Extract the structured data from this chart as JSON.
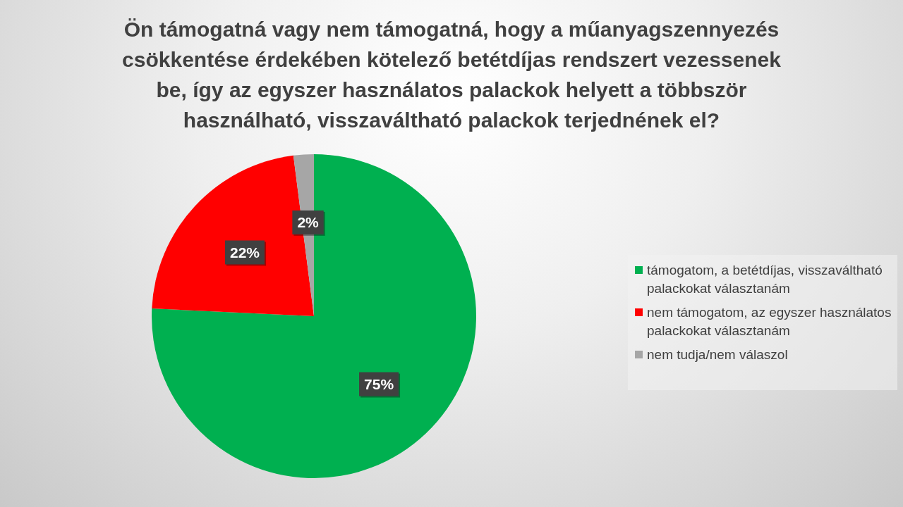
{
  "chart_data": {
    "type": "pie",
    "title": "Ön támogatná vagy nem támogatná, hogy a műanyagszennyezés csökkentése érdekében kötelező betétdíjas rendszert vezessenek be, így az egyszer használatos palackok helyett a többször használható, visszaváltható palackok terjednének el?",
    "categories": [
      "támogatom, a betétdíjas, visszaváltható palackokat választanám",
      "nem támogatom, az egyszer használatos palackokat választanám",
      "nem tudja/nem válaszol"
    ],
    "values": [
      75,
      22,
      2
    ],
    "colors": [
      "#00b050",
      "#ff0000",
      "#a6a6a6"
    ],
    "value_labels": [
      "75%",
      "22%",
      "2%"
    ],
    "legend": "right"
  }
}
